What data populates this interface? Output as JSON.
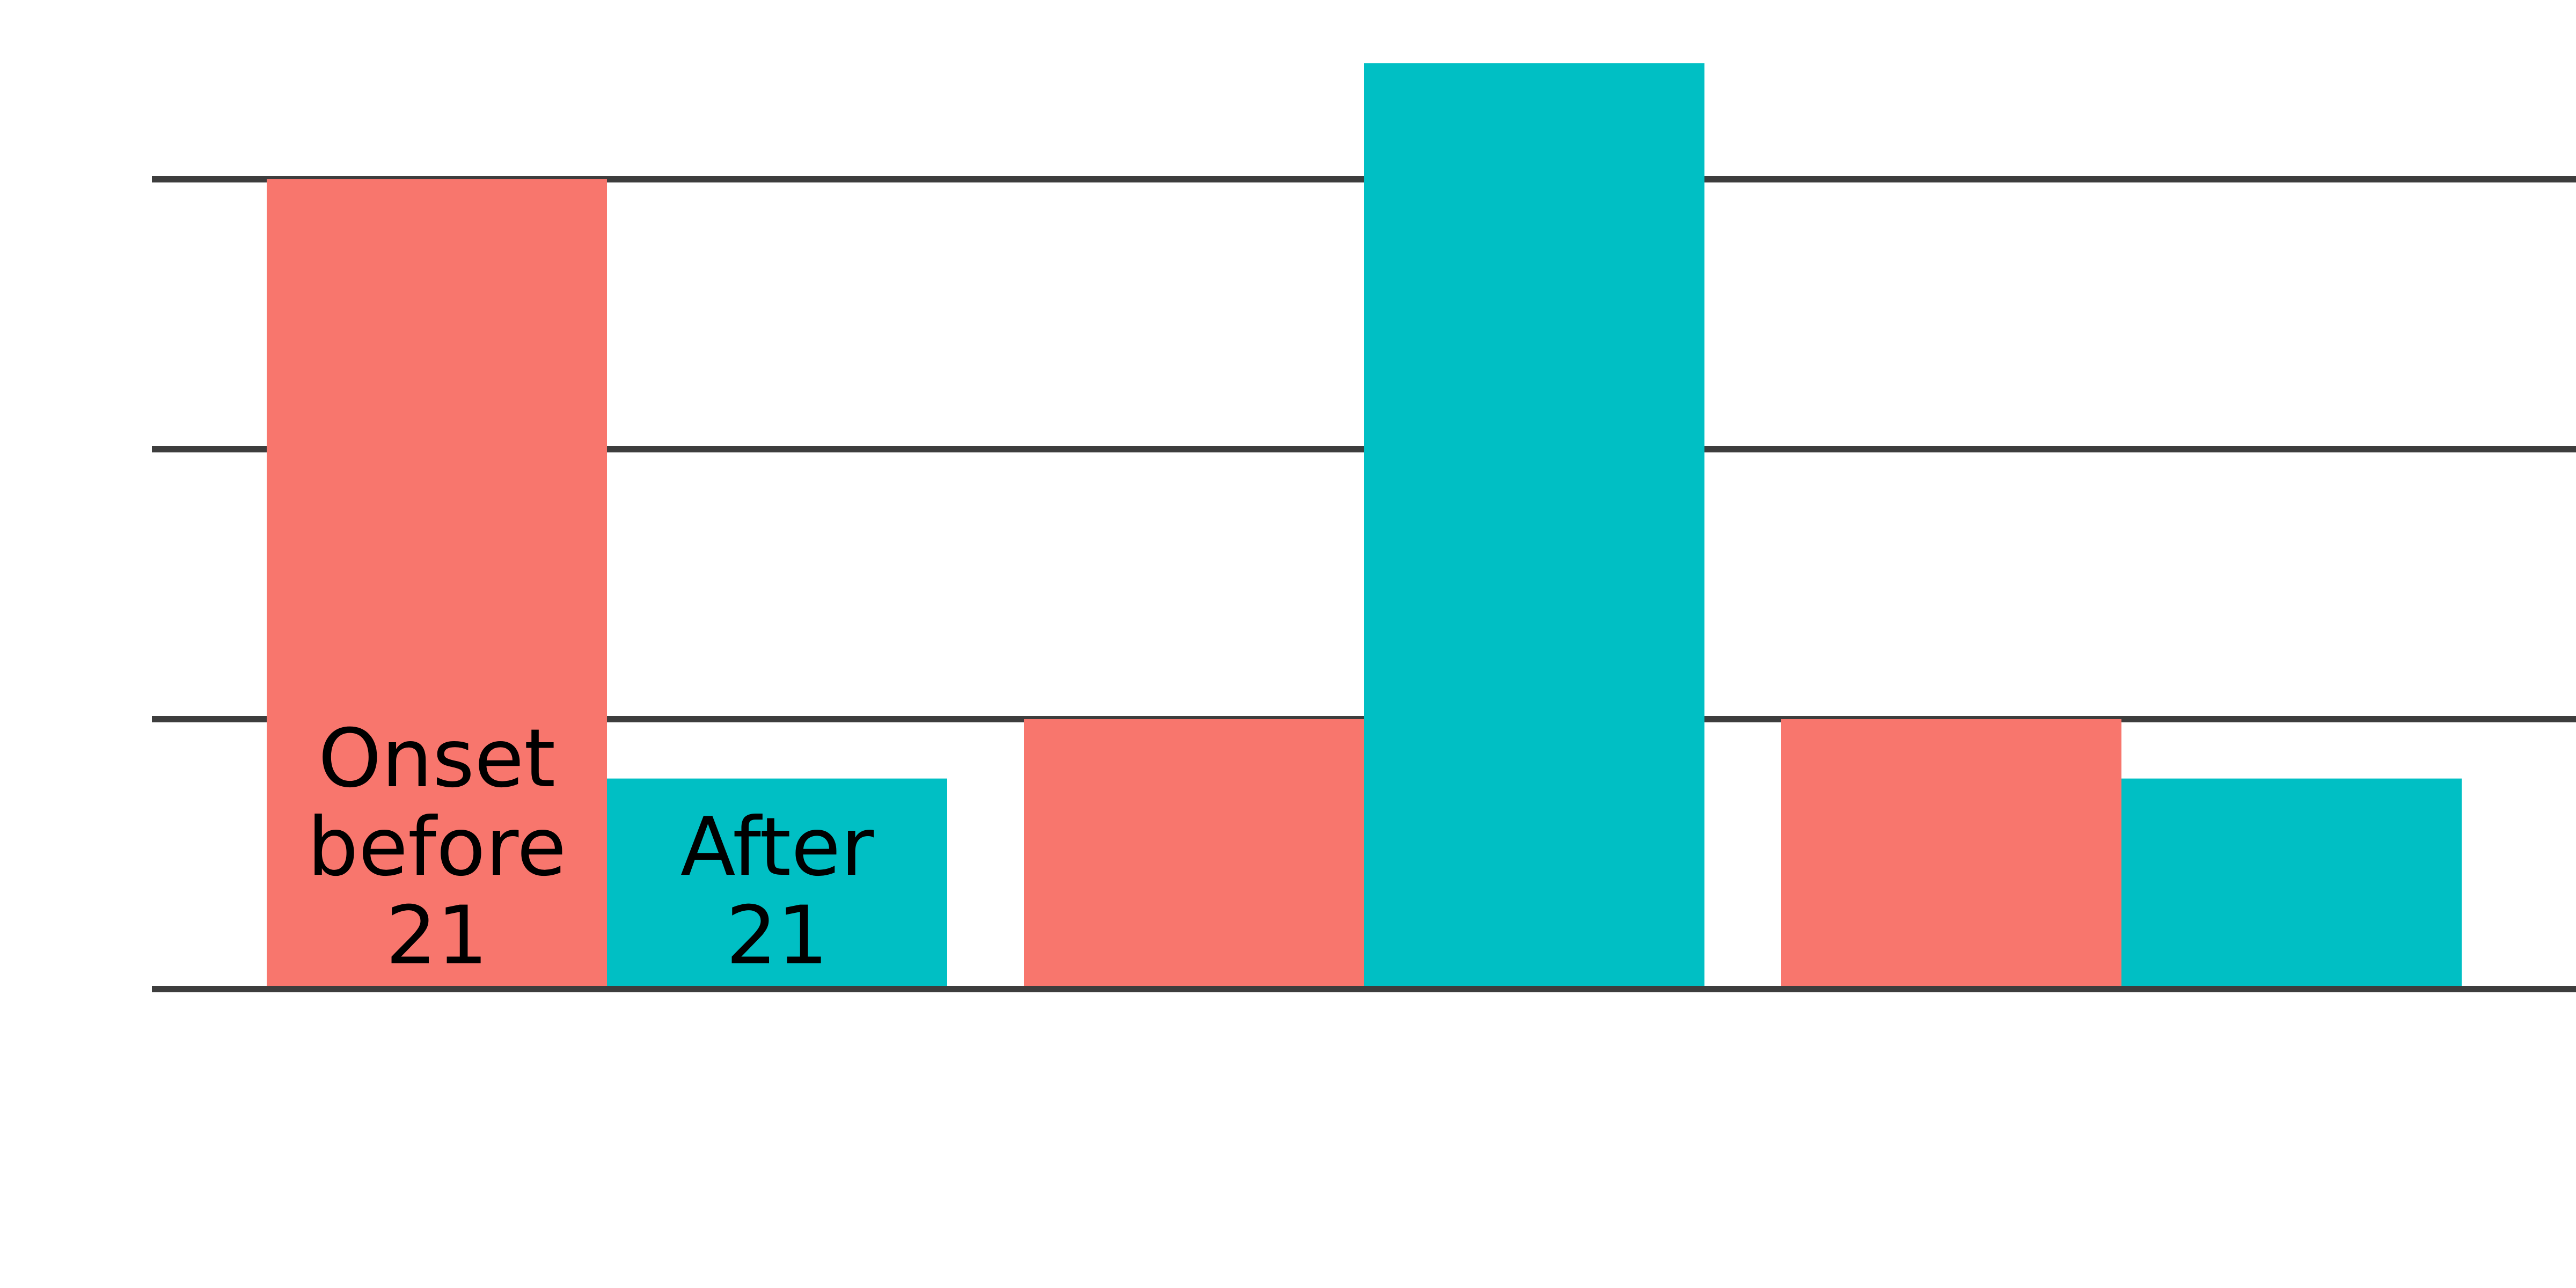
{
  "chart_data": {
    "type": "bar",
    "categories": [
      "",
      "",
      ""
    ],
    "series": [
      {
        "name": "Onset before 21",
        "color": "#F8766D",
        "values": [
          3,
          1,
          1
        ]
      },
      {
        "name": "After 21",
        "color": "#00BFC4",
        "values": [
          0.78,
          3.43,
          0.78
        ]
      }
    ],
    "ylim": [
      0,
      3.6
    ],
    "gridlines": [
      0,
      1,
      2,
      3
    ],
    "grid": true,
    "legend": "none",
    "bar_labels": [
      {
        "series": 0,
        "category": 0,
        "lines": [
          "Onset",
          "before",
          "21"
        ]
      },
      {
        "series": 1,
        "category": 0,
        "lines": [
          "After",
          "21"
        ]
      }
    ],
    "title": "",
    "xlabel": "",
    "ylabel": ""
  }
}
